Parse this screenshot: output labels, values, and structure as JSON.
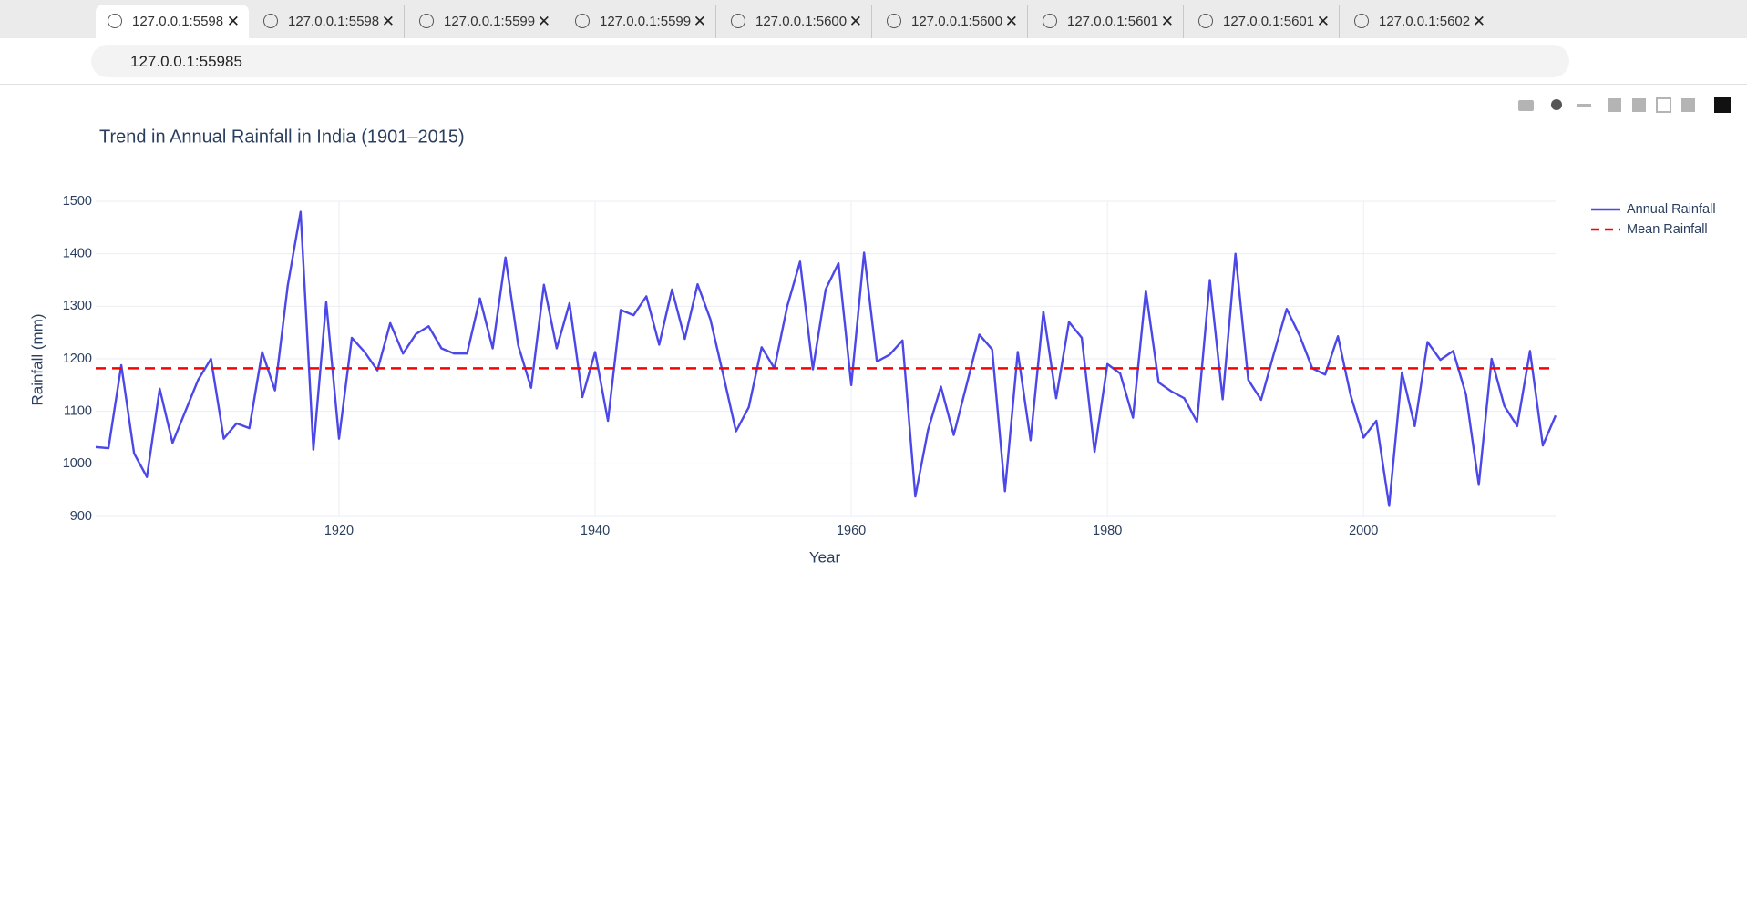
{
  "browser": {
    "tabs": [
      "127.0.0.1:5598",
      "127.0.0.1:5598",
      "127.0.0.1:5599",
      "127.0.0.1:5599",
      "127.0.0.1:5600",
      "127.0.0.1:5600",
      "127.0.0.1:5601",
      "127.0.0.1:5601",
      "127.0.0.1:5602"
    ],
    "url": "127.0.0.1:55985"
  },
  "chart_data": {
    "type": "line",
    "title": "Trend in Annual Rainfall in India (1901–2015)",
    "x_label": "Year",
    "y_label": "Rainfall (mm)",
    "xlim": [
      1901,
      2015
    ],
    "xticks": [
      1920,
      1940,
      1960,
      1980,
      2000
    ],
    "ylim": [
      900,
      1500
    ],
    "yticks": [
      900,
      1000,
      1100,
      1200,
      1300,
      1400,
      1500
    ],
    "grid": true,
    "legend": "top-right",
    "series": [
      {
        "name": "Annual Rainfall",
        "color": "#4b47e8",
        "dash": "solid",
        "x": [
          1901,
          1902,
          1903,
          1904,
          1905,
          1906,
          1907,
          1908,
          1909,
          1910,
          1911,
          1912,
          1913,
          1914,
          1915,
          1916,
          1917,
          1918,
          1919,
          1920,
          1921,
          1922,
          1923,
          1924,
          1925,
          1926,
          1927,
          1928,
          1929,
          1930,
          1931,
          1932,
          1933,
          1934,
          1935,
          1936,
          1937,
          1938,
          1939,
          1940,
          1941,
          1942,
          1943,
          1944,
          1945,
          1946,
          1947,
          1948,
          1949,
          1950,
          1951,
          1952,
          1953,
          1954,
          1955,
          1956,
          1957,
          1958,
          1959,
          1960,
          1961,
          1962,
          1963,
          1964,
          1965,
          1966,
          1967,
          1968,
          1969,
          1970,
          1971,
          1972,
          1973,
          1974,
          1975,
          1976,
          1977,
          1978,
          1979,
          1980,
          1981,
          1982,
          1983,
          1984,
          1985,
          1986,
          1987,
          1988,
          1989,
          1990,
          1991,
          1992,
          1993,
          1994,
          1995,
          1996,
          1997,
          1998,
          1999,
          2000,
          2001,
          2002,
          2003,
          2004,
          2005,
          2006,
          2007,
          2008,
          2009,
          2010,
          2011,
          2012,
          2013,
          2014,
          2015
        ],
        "values": [
          1032,
          1030,
          1188,
          1020,
          975,
          1143,
          1040,
          1100,
          1160,
          1200,
          1048,
          1077,
          1068,
          1213,
          1140,
          1340,
          1480,
          1027,
          1308,
          1048,
          1240,
          1213,
          1178,
          1268,
          1210,
          1247,
          1262,
          1220,
          1210,
          1210,
          1315,
          1220,
          1393,
          1225,
          1145,
          1341,
          1220,
          1306,
          1127,
          1213,
          1082,
          1293,
          1283,
          1319,
          1227,
          1332,
          1238,
          1342,
          1275,
          1170,
          1062,
          1108,
          1222,
          1182,
          1300,
          1385,
          1180,
          1332,
          1382,
          1150,
          1402,
          1195,
          1208,
          1235,
          938,
          1065,
          1147,
          1055,
          1150,
          1246,
          1218,
          948,
          1213,
          1045,
          1290,
          1125,
          1270,
          1240,
          1023,
          1190,
          1172,
          1088,
          1330,
          1155,
          1138,
          1125,
          1080,
          1350,
          1123,
          1400,
          1160,
          1122,
          1210,
          1295,
          1245,
          1182,
          1170,
          1243,
          1130,
          1050,
          1082,
          920,
          1174,
          1072,
          1232,
          1198,
          1215,
          1132,
          960,
          1200,
          1110,
          1072,
          1215,
          1035,
          1092
        ]
      },
      {
        "name": "Mean Rainfall",
        "color": "#ff0000",
        "dash": "dash",
        "x": [
          1901,
          2015
        ],
        "values": [
          1182,
          1182
        ]
      }
    ]
  }
}
